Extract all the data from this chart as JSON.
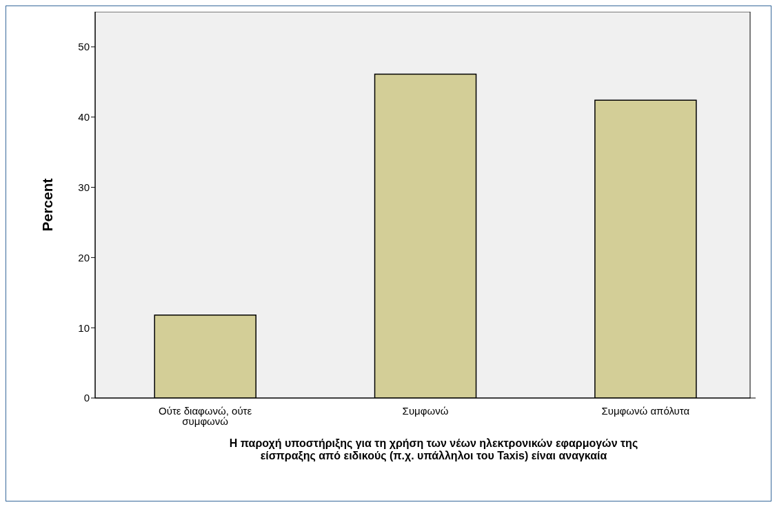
{
  "chart_data": {
    "type": "bar",
    "xlabel": "Η παροχή υποστήριξης για τη χρήση των νέων ηλεκτρονικών εφαρμογών της είσπραξης από ειδικούς (π.χ. υπάλληλοι του Taxis)  είναι αναγκαία",
    "ylabel": "Percent",
    "categories": [
      "Ούτε διαφωνώ, ούτε συμφωνώ",
      "Συμφωνώ",
      "Συμφωνώ απόλυτα"
    ],
    "values": [
      11.8,
      46.1,
      42.4
    ],
    "color": "#d3ce97",
    "ylim": [
      0,
      55
    ],
    "yticks": [
      0,
      10,
      20,
      30,
      40,
      50
    ],
    "grid": false
  }
}
